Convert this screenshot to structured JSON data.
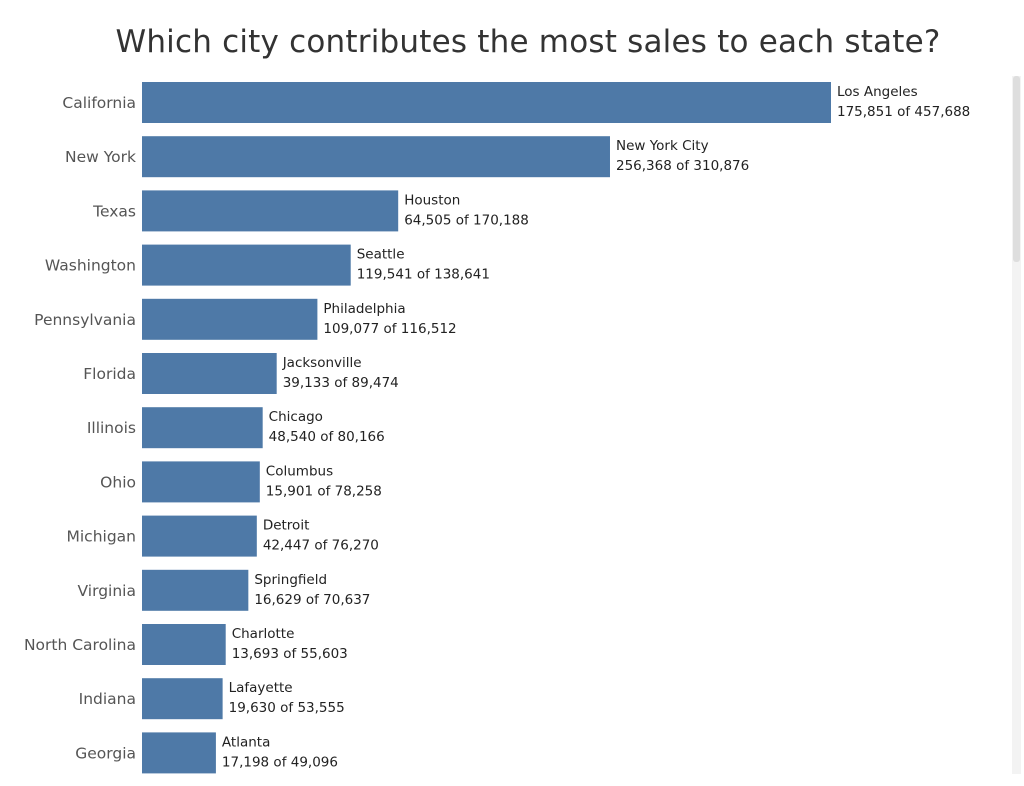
{
  "chart_data": {
    "type": "bar",
    "orientation": "horizontal",
    "title": "Which city contributes the most sales to each state?",
    "xlabel": "",
    "ylabel": "",
    "xlim": [
      0,
      457688
    ],
    "grid": false,
    "bar_color": "#4e79a7",
    "categories": [
      "California",
      "New York",
      "Texas",
      "Washington",
      "Pennsylvania",
      "Florida",
      "Illinois",
      "Ohio",
      "Michigan",
      "Virginia",
      "North Carolina",
      "Indiana",
      "Georgia"
    ],
    "values": [
      457688,
      310876,
      170188,
      138641,
      116512,
      89474,
      80166,
      78258,
      76270,
      70637,
      55603,
      53555,
      49096
    ],
    "top_city": [
      "Los Angeles",
      "New York City",
      "Houston",
      "Seattle",
      "Philadelphia",
      "Jacksonville",
      "Chicago",
      "Columbus",
      "Detroit",
      "Springfield",
      "Charlotte",
      "Lafayette",
      "Atlanta"
    ],
    "top_city_sales": [
      175851,
      256368,
      64505,
      119541,
      109077,
      39133,
      48540,
      15901,
      42447,
      16629,
      13693,
      19630,
      17198
    ],
    "value_labels": [
      "175,851 of 457,688",
      "256,368 of 310,876",
      "64,505 of 170,188",
      "119,541 of 138,641",
      "109,077 of 116,512",
      "39,133 of 89,474",
      "48,540 of 80,166",
      "15,901 of 78,258",
      "42,447 of 76,270",
      "16,629 of 70,637",
      "13,693 of 55,603",
      "19,630 of 53,555",
      "17,198 of 49,096"
    ]
  }
}
